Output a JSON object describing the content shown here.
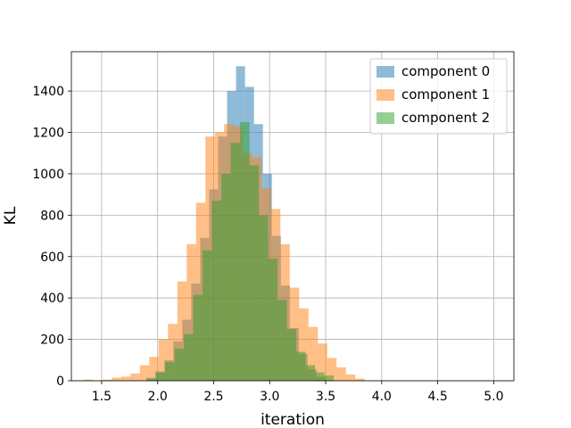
{
  "chart_data": {
    "type": "bar",
    "subtype": "overlaid-histogram",
    "xlabel": "iteration",
    "ylabel": "KL",
    "xlim": [
      1.23,
      5.18
    ],
    "ylim": [
      0,
      1590
    ],
    "grid": true,
    "legend_position": "top-right",
    "x_ticks": [
      "1.5",
      "2.0",
      "2.5",
      "3.0",
      "3.5",
      "4.0",
      "4.5",
      "5.0"
    ],
    "y_ticks": [
      "0",
      "200",
      "400",
      "600",
      "800",
      "1000",
      "1200",
      "1400"
    ],
    "series": [
      {
        "name": "component 0",
        "color": "#1f77b4",
        "opacity": 0.5,
        "bin_start": 1.9,
        "bin_width": 0.08,
        "counts": [
          15,
          45,
          100,
          190,
          295,
          470,
          690,
          925,
          1180,
          1400,
          1520,
          1420,
          1240,
          1000,
          700,
          460,
          255,
          130,
          55,
          20
        ]
      },
      {
        "name": "component 1",
        "color": "#ff7f0e",
        "opacity": 0.5,
        "bin_start": 1.34,
        "bin_width": 0.0836,
        "counts": [
          5,
          0,
          5,
          15,
          20,
          35,
          75,
          115,
          200,
          275,
          480,
          660,
          860,
          1180,
          1200,
          1240,
          1230,
          1100,
          1080,
          930,
          830,
          660,
          450,
          350,
          260,
          180,
          110,
          65,
          30,
          10
        ]
      },
      {
        "name": "component 2",
        "color": "#2ca02c",
        "opacity": 0.5,
        "bin_start": 1.9,
        "bin_width": 0.0836,
        "counts": [
          10,
          40,
          90,
          155,
          225,
          415,
          630,
          870,
          1000,
          1150,
          1250,
          1040,
          800,
          590,
          390,
          250,
          140,
          75,
          40,
          25
        ]
      }
    ]
  }
}
